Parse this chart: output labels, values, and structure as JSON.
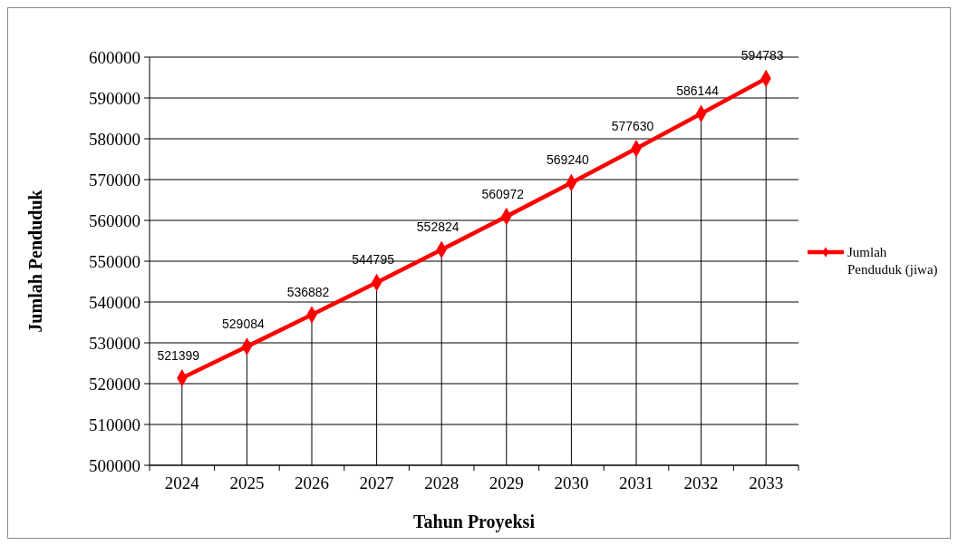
{
  "chart_data": {
    "type": "line",
    "xlabel": "Tahun Proyeksi",
    "ylabel": "Jumlah Penduduk",
    "categories": [
      "2024",
      "2025",
      "2026",
      "2027",
      "2028",
      "2029",
      "2030",
      "2031",
      "2032",
      "2033"
    ],
    "series": [
      {
        "name": "Jumlah Penduduk (jiwa)",
        "color": "#ff0000",
        "values": [
          521399,
          529084,
          536882,
          544795,
          552824,
          560972,
          569240,
          577630,
          586144,
          594783
        ]
      }
    ],
    "ylim": [
      500000,
      600000
    ],
    "yticks": [
      500000,
      510000,
      520000,
      530000,
      540000,
      550000,
      560000,
      570000,
      580000,
      590000,
      600000
    ],
    "grid": true,
    "legend": "right",
    "marker": "diamond",
    "line_style": "solid",
    "data_labels": true
  }
}
